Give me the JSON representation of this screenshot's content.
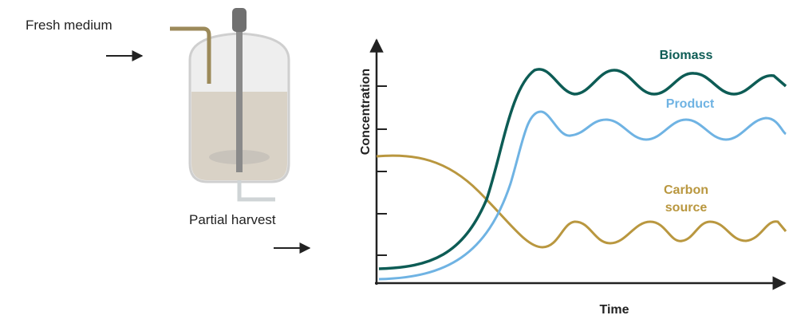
{
  "labels": {
    "fresh_medium": "Fresh medium",
    "partial_harvest": "Partial harvest"
  },
  "plot": {
    "y_axis_label": "Concentration",
    "x_axis_label": "Time",
    "curves": [
      {
        "name": "Biomass",
        "color": "#0d5c55"
      },
      {
        "name": "Product",
        "color": "#6fb3e3"
      },
      {
        "name": "Carbon source",
        "color": "#b9973f"
      }
    ]
  }
}
